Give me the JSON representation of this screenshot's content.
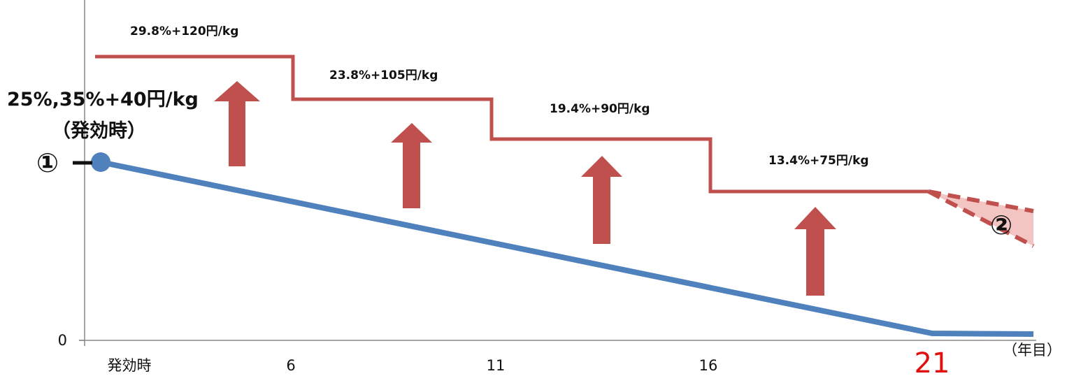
{
  "chart_data": {
    "type": "line",
    "x_ticks": [
      "発効時",
      "6",
      "11",
      "16",
      "21"
    ],
    "x_unit": "（年目）",
    "y_ticks": [
      "0"
    ],
    "series": [],
    "tariff_steps": [
      {
        "from": 1,
        "to": 6,
        "label": "29.8%+120円/kg"
      },
      {
        "from": 6,
        "to": 11,
        "label": "23.8%+105円/kg"
      },
      {
        "from": 11,
        "to": 16,
        "label": "19.4%+90円/kg"
      },
      {
        "from": 16,
        "to": 21,
        "label": "13.4%+75円/kg"
      }
    ],
    "start_label_line1": "25%,35%+40円/kg",
    "start_label_line2": "（発効時）",
    "marker_1": "①",
    "marker_2": "②",
    "highlight_tick": "21",
    "colors": {
      "step_line": "#c0504d",
      "decline_line": "#4f81bd",
      "arrow": "#c0504d",
      "wedge_fill": "#f2c4c2",
      "highlight_tick": "#e01010",
      "axis": "#888888"
    }
  }
}
